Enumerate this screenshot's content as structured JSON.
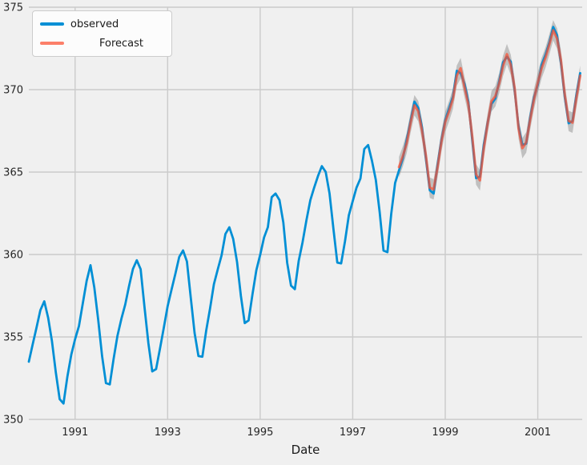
{
  "chart_data": {
    "type": "line",
    "title": "",
    "xlabel": "Date",
    "ylabel": "",
    "xlim": [
      1990.0,
      2001.96
    ],
    "ylim": [
      350,
      375
    ],
    "x_ticks": [
      1991,
      1993,
      1995,
      1997,
      1999,
      2001
    ],
    "y_ticks": [
      350,
      355,
      360,
      365,
      370,
      375
    ],
    "grid": true,
    "background_color": "#f0f0f0",
    "grid_color": "#cbcbcb",
    "legend_position": "upper left",
    "x_step": 0.0833333,
    "series": [
      {
        "name": "observed",
        "color": "#008fd5",
        "x_start": 1990.0,
        "values": [
          353.5,
          354.55,
          355.57,
          356.62,
          357.16,
          356.17,
          354.74,
          352.85,
          351.23,
          350.96,
          352.58,
          353.92,
          354.87,
          355.66,
          357.04,
          358.4,
          359.35,
          357.99,
          356.01,
          353.83,
          352.2,
          352.12,
          353.68,
          355.08,
          356.1,
          356.97,
          358.1,
          359.12,
          359.65,
          359.11,
          356.83,
          354.62,
          352.91,
          353.05,
          354.27,
          355.55,
          356.86,
          357.85,
          358.83,
          359.85,
          360.25,
          359.58,
          357.39,
          355.24,
          353.84,
          353.8,
          355.39,
          356.73,
          358.2,
          359.09,
          359.95,
          361.25,
          361.65,
          360.94,
          359.55,
          357.49,
          355.84,
          356.0,
          357.59,
          359.05,
          359.98,
          361.03,
          361.66,
          363.48,
          363.7,
          363.3,
          361.94,
          359.5,
          358.11,
          357.9,
          359.61,
          360.74,
          362.09,
          363.29,
          364.06,
          364.76,
          365.36,
          365.01,
          363.7,
          361.54,
          359.51,
          359.46,
          360.8,
          362.38,
          363.23,
          364.06,
          364.61,
          366.4,
          366.64,
          365.68,
          364.52,
          362.57,
          360.24,
          360.14,
          362.49,
          364.34,
          365.09,
          365.82,
          366.95,
          368.11,
          369.27,
          368.89,
          367.68,
          365.77,
          363.9,
          363.7,
          365.46,
          366.97,
          368.15,
          368.87,
          369.59,
          371.14,
          371.0,
          370.35,
          369.27,
          366.93,
          364.63,
          364.72,
          366.67,
          368.01,
          369.14,
          369.46,
          370.52,
          371.66,
          371.99,
          371.7,
          369.95,
          367.8,
          366.64,
          366.73,
          368.29,
          369.53,
          370.28,
          371.5,
          372.12,
          372.87,
          373.8,
          373.3,
          371.62,
          369.55,
          367.96,
          368.09,
          369.68,
          371.0
        ]
      },
      {
        "name": "Forecast",
        "color": "#fc4f30",
        "opacity": 0.72,
        "x_start": 1998.0,
        "ci_halfwidth": 0.62,
        "ci_color": "#7f7f7f",
        "values": [
          365.3,
          365.95,
          366.75,
          368.0,
          369.05,
          368.7,
          367.5,
          365.95,
          364.05,
          363.95,
          365.3,
          366.85,
          368.05,
          368.7,
          369.45,
          370.85,
          371.3,
          370.15,
          369.1,
          367.15,
          364.85,
          364.5,
          366.45,
          367.95,
          369.3,
          369.6,
          370.4,
          371.45,
          372.15,
          371.5,
          370.1,
          367.65,
          366.45,
          366.8,
          368.15,
          369.4,
          370.4,
          371.3,
          371.95,
          372.75,
          373.6,
          373.1,
          371.8,
          369.7,
          368.1,
          368.0,
          369.5,
          370.85
        ]
      }
    ]
  }
}
